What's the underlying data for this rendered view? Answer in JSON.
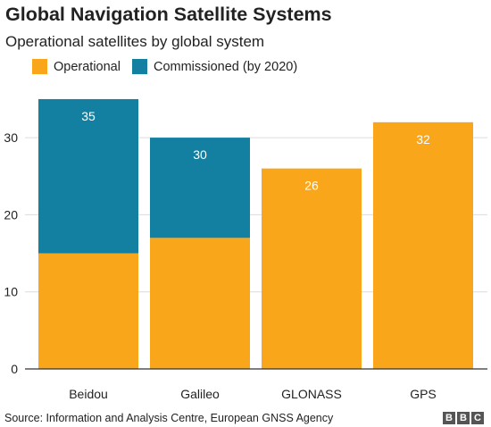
{
  "header": {
    "title": "Global Navigation Satellite Systems",
    "subtitle": "Operational satellites by global system"
  },
  "legend": [
    {
      "label": "Operational",
      "color": "#f9a61b"
    },
    {
      "label": "Commissioned (by 2020)",
      "color": "#1380a1"
    }
  ],
  "footer": {
    "source": "Source: Information and Analysis Centre, European GNSS Agency",
    "logo_letters": [
      "B",
      "B",
      "C"
    ]
  },
  "chart_data": {
    "type": "bar",
    "stacked": true,
    "categories": [
      "Beidou",
      "Galileo",
      "GLONASS",
      "GPS"
    ],
    "series": [
      {
        "name": "Operational",
        "color": "#f9a61b",
        "values": [
          15,
          17,
          26,
          32
        ]
      },
      {
        "name": "Commissioned (by 2020)",
        "color": "#1380a1",
        "values": [
          20,
          13,
          0,
          0
        ]
      }
    ],
    "totals": [
      35,
      30,
      26,
      32
    ],
    "data_labels": [
      "35",
      "30",
      "26",
      "32"
    ],
    "title": "Global Navigation Satellite Systems",
    "subtitle": "Operational satellites by global system",
    "xlabel": "",
    "ylabel": "",
    "ylim": [
      0,
      35
    ],
    "yticks": [
      0,
      10,
      20,
      30
    ],
    "grid": true,
    "legend_position": "top-left"
  }
}
